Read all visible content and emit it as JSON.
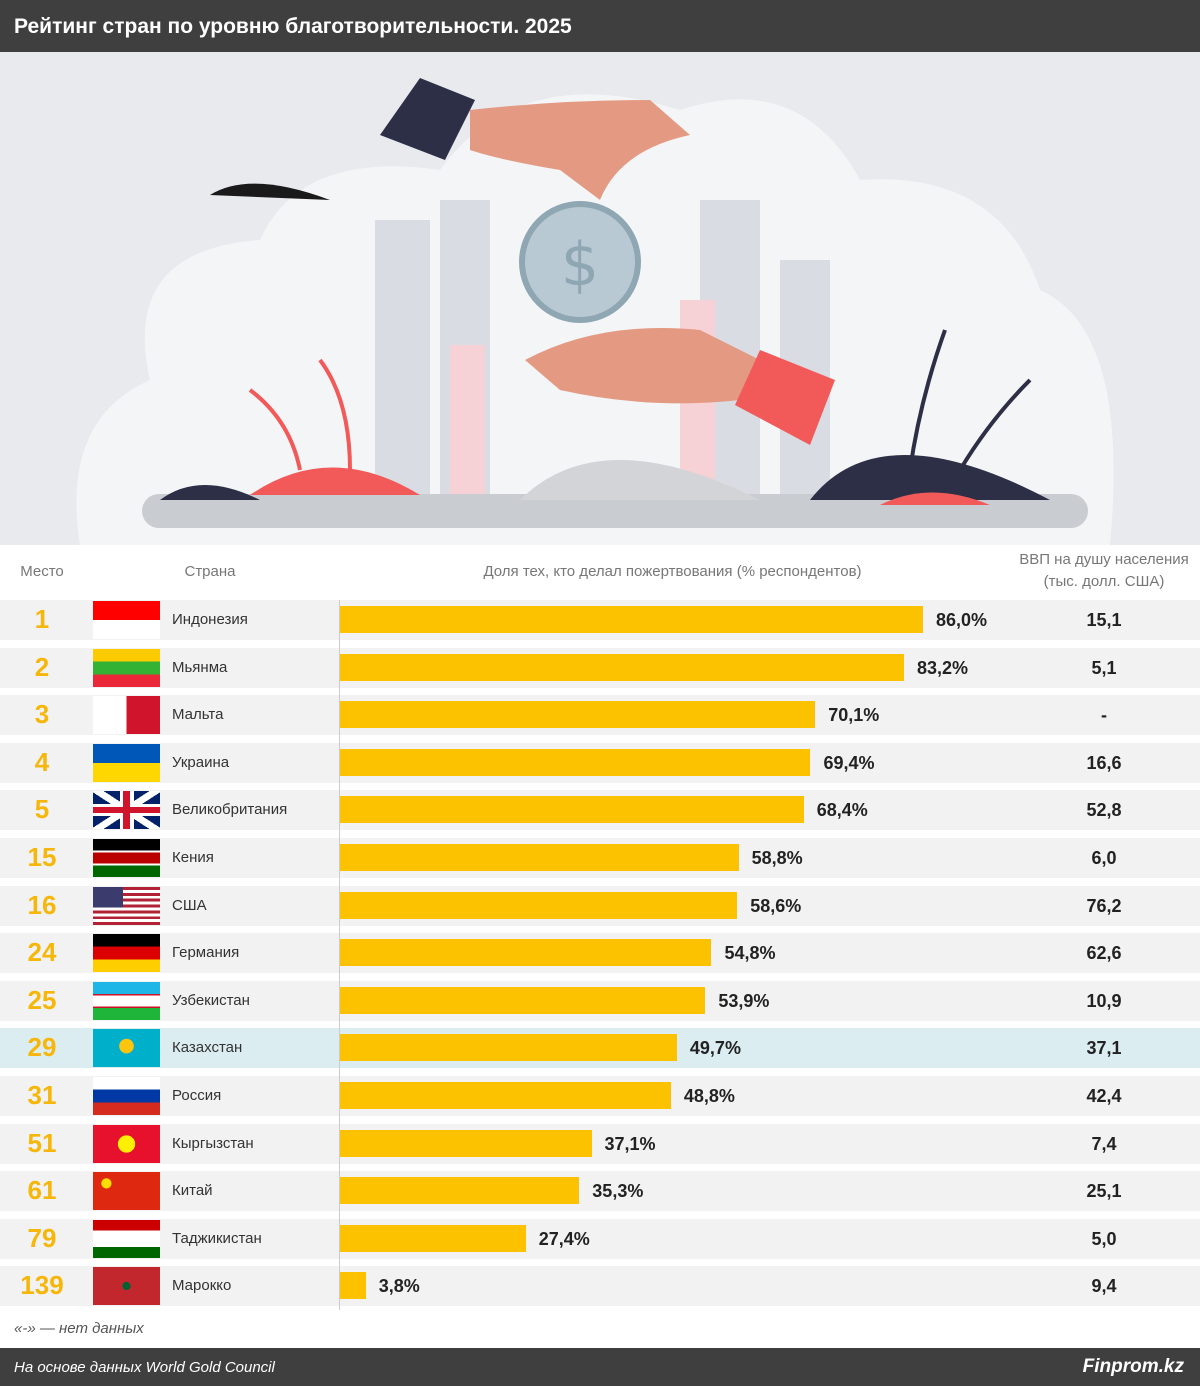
{
  "title": "Рейтинг стран по уровню благотворительности. 2025",
  "headers": {
    "rank": "Место",
    "country": "Страна",
    "share": "Доля тех, кто делал пожертвования (% респондентов)",
    "gdp_line1": "ВВП на душу населения",
    "gdp_line2": "(тыс. долл. США)"
  },
  "note": "«-» — нет данных",
  "source": "На основе данных World Gold Council",
  "brand": "Finprom.kz",
  "colors": {
    "bar": "#fcc200",
    "rank": "#f6b70a",
    "highlight": "#dcedf2",
    "header": "#3f3f3f"
  },
  "chart_data": {
    "type": "bar",
    "orientation": "horizontal",
    "xlim": [
      0,
      100
    ],
    "highlighted": "Казахстан",
    "rows": [
      {
        "rank": "1",
        "country": "Индонезия",
        "flag": "indonesia",
        "value": 86.0,
        "label": "86,0%",
        "gdp": "15,1"
      },
      {
        "rank": "2",
        "country": "Мьянма",
        "flag": "myanmar",
        "value": 83.2,
        "label": "83,2%",
        "gdp": "5,1"
      },
      {
        "rank": "3",
        "country": "Мальта",
        "flag": "malta",
        "value": 70.1,
        "label": "70,1%",
        "gdp": "-"
      },
      {
        "rank": "4",
        "country": "Украина",
        "flag": "ukraine",
        "value": 69.4,
        "label": "69,4%",
        "gdp": "16,6"
      },
      {
        "rank": "5",
        "country": "Великобритания",
        "flag": "uk",
        "value": 68.4,
        "label": "68,4%",
        "gdp": "52,8"
      },
      {
        "rank": "15",
        "country": "Кения",
        "flag": "kenya",
        "value": 58.8,
        "label": "58,8%",
        "gdp": "6,0"
      },
      {
        "rank": "16",
        "country": "США",
        "flag": "usa",
        "value": 58.6,
        "label": "58,6%",
        "gdp": "76,2"
      },
      {
        "rank": "24",
        "country": "Германия",
        "flag": "germany",
        "value": 54.8,
        "label": "54,8%",
        "gdp": "62,6"
      },
      {
        "rank": "25",
        "country": "Узбекистан",
        "flag": "uzbekistan",
        "value": 53.9,
        "label": "53,9%",
        "gdp": "10,9"
      },
      {
        "rank": "29",
        "country": "Казахстан",
        "flag": "kazakhstan",
        "value": 49.7,
        "label": "49,7%",
        "gdp": "37,1"
      },
      {
        "rank": "31",
        "country": "Россия",
        "flag": "russia",
        "value": 48.8,
        "label": "48,8%",
        "gdp": "42,4"
      },
      {
        "rank": "51",
        "country": "Кыргызстан",
        "flag": "kyrgyzstan",
        "value": 37.1,
        "label": "37,1%",
        "gdp": "7,4"
      },
      {
        "rank": "61",
        "country": "Китай",
        "flag": "china",
        "value": 35.3,
        "label": "35,3%",
        "gdp": "25,1"
      },
      {
        "rank": "79",
        "country": "Таджикистан",
        "flag": "tajikistan",
        "value": 27.4,
        "label": "27,4%",
        "gdp": "5,0"
      },
      {
        "rank": "139",
        "country": "Марокко",
        "flag": "morocco",
        "value": 3.8,
        "label": "3,8%",
        "gdp": "9,4"
      }
    ]
  }
}
